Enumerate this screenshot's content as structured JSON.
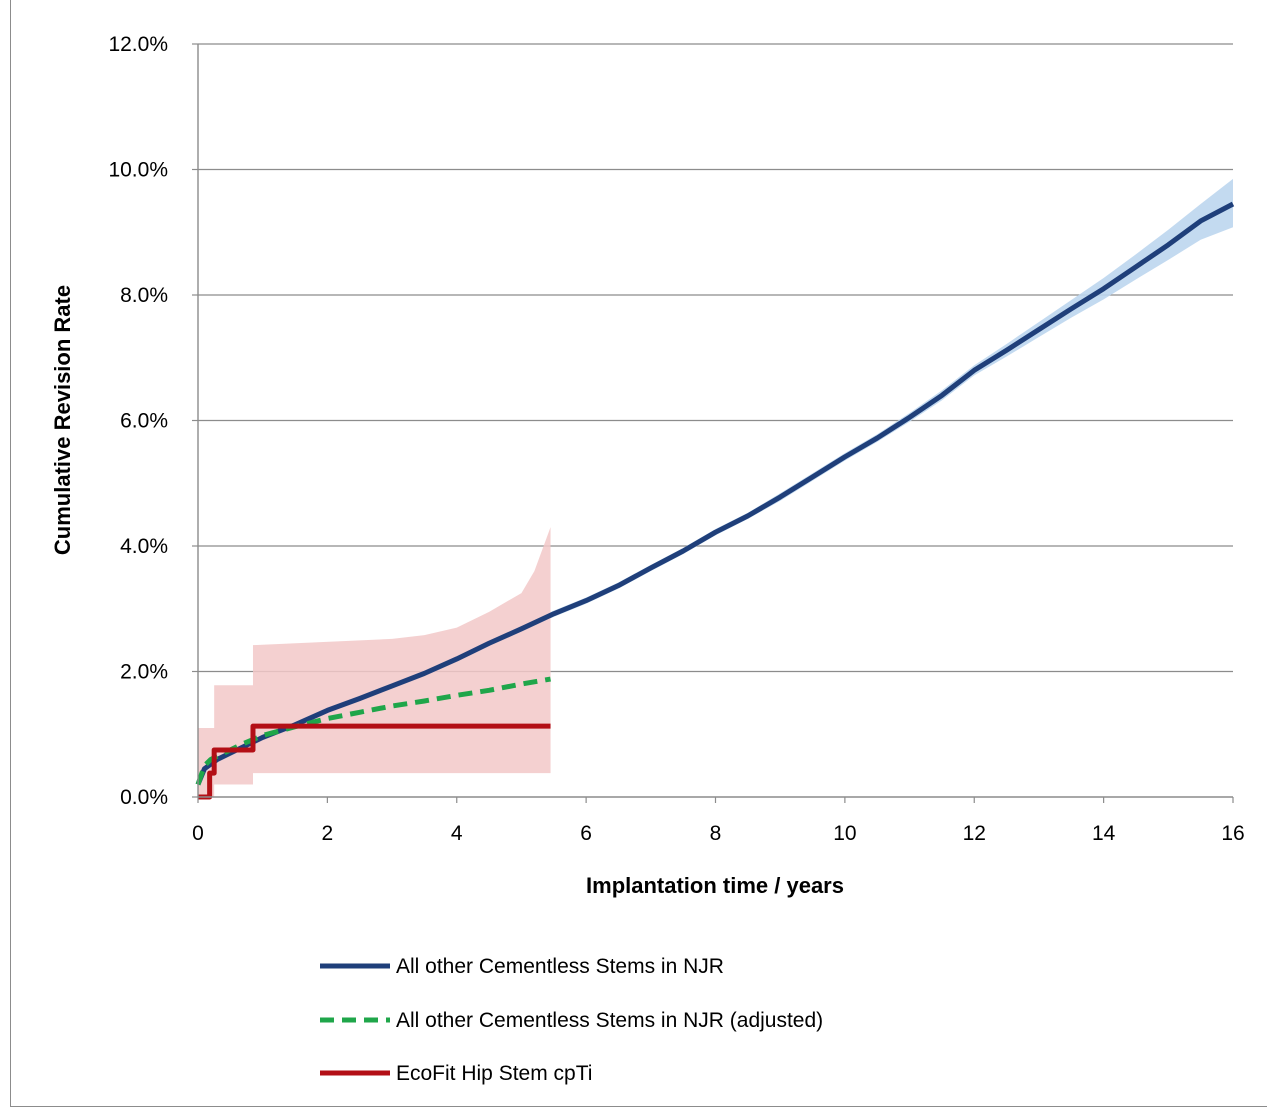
{
  "chart_data": {
    "type": "line",
    "title": "",
    "xlabel": "Implantation time  / years",
    "ylabel": "Cumulative Revision Rate",
    "xlim": [
      0,
      16
    ],
    "ylim": [
      0,
      12
    ],
    "x_ticks": [
      "0",
      "2",
      "4",
      "6",
      "8",
      "10",
      "12",
      "14",
      "16"
    ],
    "y_ticks": [
      "0.0%",
      "2.0%",
      "4.0%",
      "6.0%",
      "8.0%",
      "10.0%",
      "12.0%"
    ],
    "grid": "horizontal",
    "legend_position": "bottom",
    "series": [
      {
        "name": "All other Cementless Stems in NJR",
        "style": "solid",
        "color": "#1f3f7a",
        "band_color": "#bcd6ee",
        "x": [
          0,
          0.1,
          0.3,
          0.6,
          1.0,
          1.5,
          2.0,
          2.5,
          3.0,
          3.5,
          4.0,
          4.5,
          5.0,
          5.5,
          6.0,
          6.5,
          7.0,
          7.5,
          8.0,
          8.5,
          9.0,
          9.5,
          10.0,
          10.5,
          11.0,
          11.5,
          12.0,
          12.5,
          13.0,
          13.5,
          14.0,
          14.5,
          15.0,
          15.5,
          16.0
        ],
        "y": [
          0.2,
          0.45,
          0.6,
          0.75,
          0.95,
          1.15,
          1.38,
          1.57,
          1.77,
          1.97,
          2.2,
          2.45,
          2.68,
          2.92,
          3.13,
          3.37,
          3.65,
          3.92,
          4.22,
          4.48,
          4.78,
          5.1,
          5.42,
          5.72,
          6.05,
          6.4,
          6.8,
          7.12,
          7.45,
          7.78,
          8.1,
          8.45,
          8.8,
          9.18,
          9.45
        ],
        "ci_lower": [
          0.15,
          0.4,
          0.55,
          0.7,
          0.9,
          1.1,
          1.33,
          1.52,
          1.72,
          1.92,
          2.15,
          2.4,
          2.63,
          2.87,
          3.08,
          3.32,
          3.6,
          3.87,
          4.17,
          4.43,
          4.72,
          5.04,
          5.36,
          5.66,
          5.98,
          6.32,
          6.72,
          7.02,
          7.33,
          7.64,
          7.93,
          8.25,
          8.56,
          8.88,
          9.08
        ],
        "ci_upper": [
          0.25,
          0.5,
          0.65,
          0.8,
          1.0,
          1.2,
          1.43,
          1.62,
          1.82,
          2.02,
          2.25,
          2.5,
          2.73,
          2.97,
          3.18,
          3.42,
          3.7,
          3.97,
          4.27,
          4.53,
          4.84,
          5.16,
          5.48,
          5.78,
          6.12,
          6.48,
          6.88,
          7.22,
          7.57,
          7.92,
          8.27,
          8.65,
          9.04,
          9.45,
          9.85
        ]
      },
      {
        "name": "All other Cementless Stems in NJR (adjusted)",
        "style": "dashed",
        "color": "#1fa64a",
        "x": [
          0,
          0.1,
          0.2,
          0.4,
          0.7,
          1.0,
          1.5,
          2.0,
          2.5,
          3.0,
          3.5,
          4.0,
          4.5,
          5.0,
          5.45
        ],
        "y": [
          0.2,
          0.5,
          0.6,
          0.7,
          0.85,
          0.98,
          1.12,
          1.25,
          1.35,
          1.45,
          1.53,
          1.62,
          1.7,
          1.8,
          1.88
        ]
      },
      {
        "name": "EcoFit Hip Stem cpTi",
        "style": "step",
        "color": "#b30f16",
        "band_color": "#f2c8c8",
        "x": [
          0,
          0.18,
          0.18,
          0.25,
          0.25,
          0.85,
          0.85,
          5.45
        ],
        "y": [
          0.0,
          0.0,
          0.38,
          0.38,
          0.75,
          0.75,
          1.13,
          1.13
        ],
        "ci_x": [
          0,
          0.25,
          0.25,
          0.85,
          0.85,
          3.0,
          3.5,
          4.0,
          4.5,
          5.0,
          5.2,
          5.45
        ],
        "ci_upper": [
          1.1,
          1.1,
          1.78,
          1.78,
          2.42,
          2.52,
          2.58,
          2.7,
          2.95,
          3.25,
          3.6,
          4.3
        ],
        "ci_lower": [
          0.0,
          0.0,
          0.2,
          0.2,
          0.38,
          0.38,
          0.38,
          0.38,
          0.38,
          0.38,
          0.38,
          0.38
        ]
      }
    ]
  }
}
